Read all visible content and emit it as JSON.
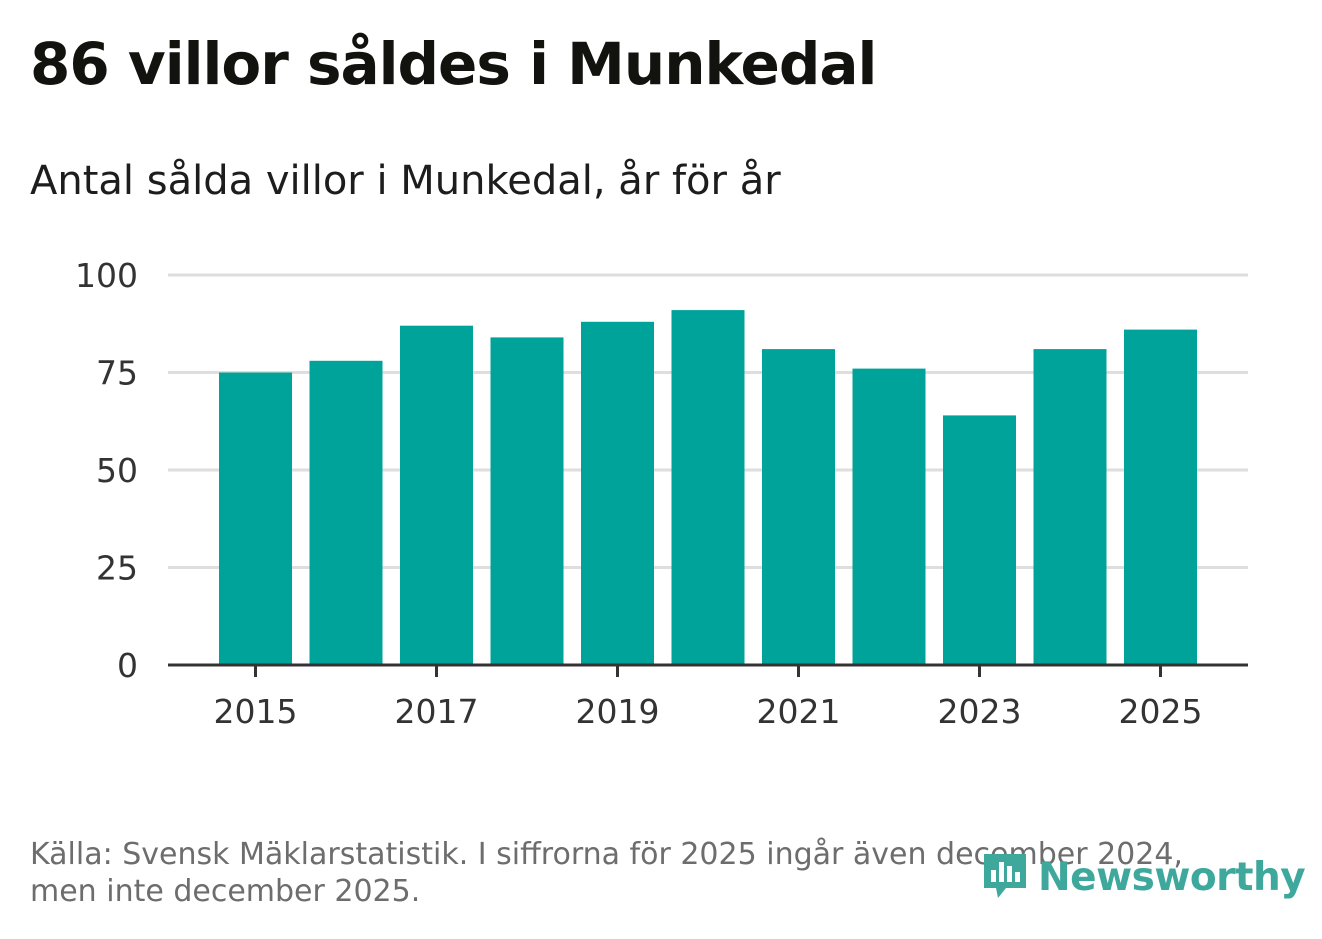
{
  "title": "86 villor såldes i Munkedal",
  "subtitle": "Antal sålda villor i Munkedal, år för år",
  "source": "Källa: Svensk Mäklarstatistik. I siffrorna för 2025 ingår även december 2024, men inte december 2025.",
  "logo": {
    "name": "Newsworthy",
    "icon": "bar-chart-speech-bubble-icon",
    "color": "#3ea89c"
  },
  "chart_data": {
    "type": "bar",
    "title": "86 villor såldes i Munkedal",
    "subtitle": "Antal sålda villor i Munkedal, år för år",
    "xlabel": "",
    "ylabel": "",
    "categories": [
      "2015",
      "2016",
      "2017",
      "2018",
      "2019",
      "2020",
      "2021",
      "2022",
      "2023",
      "2024",
      "2025"
    ],
    "values": [
      75,
      78,
      87,
      84,
      88,
      91,
      81,
      76,
      64,
      81,
      86
    ],
    "ylim": [
      0,
      100
    ],
    "yticks": [
      "0",
      "25",
      "50",
      "75",
      "100"
    ],
    "xticks": [
      "2015",
      "2017",
      "2019",
      "2021",
      "2023",
      "2025"
    ],
    "grid": true,
    "bar_color": "#00a39a"
  }
}
